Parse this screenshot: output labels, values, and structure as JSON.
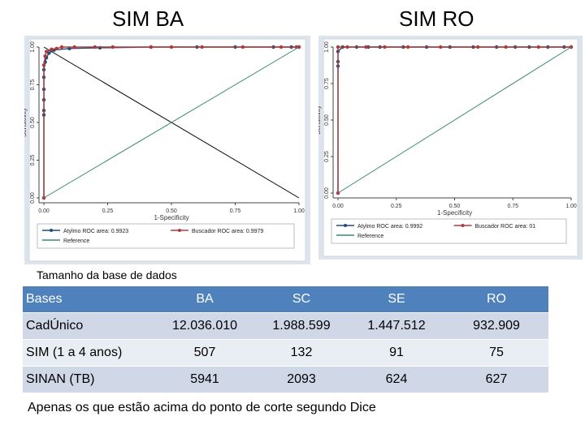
{
  "headings": {
    "left": "SIM BA",
    "right": "SIM RO"
  },
  "chart_data": [
    {
      "type": "line",
      "panel": "SIM BA",
      "xlabel": "1-Specificity",
      "ylabel": "Sensitivity",
      "xlim": [
        0,
        1
      ],
      "ylim": [
        0,
        1
      ],
      "xticks": [
        "0.00",
        "0.25",
        "0.50",
        "0.75",
        "1.00"
      ],
      "yticks": [
        "0.00",
        "0.25",
        "0.50",
        "0.75",
        "1.00"
      ],
      "series": [
        {
          "name": "Atylmo ROC area: 0.9923",
          "color": "#1f4e79",
          "points": [
            [
              0,
              0
            ],
            [
              0,
              0.55
            ],
            [
              0,
              0.58
            ],
            [
              0,
              0.65
            ],
            [
              0,
              0.72
            ],
            [
              0,
              0.8
            ],
            [
              0,
              0.85
            ],
            [
              0.005,
              0.9
            ],
            [
              0.01,
              0.93
            ],
            [
              0.02,
              0.96
            ],
            [
              0.04,
              0.98
            ],
            [
              0.1,
              0.99
            ],
            [
              0.22,
              0.995
            ],
            [
              0.42,
              1
            ],
            [
              0.6,
              1
            ],
            [
              0.75,
              1
            ],
            [
              0.9,
              1
            ],
            [
              0.97,
              1
            ],
            [
              1,
              1
            ]
          ]
        },
        {
          "name": "Buscador ROC area: 0.9979",
          "color": "#b03a3a",
          "points": [
            [
              0,
              0
            ],
            [
              0,
              0.88
            ],
            [
              0.005,
              0.94
            ],
            [
              0.01,
              0.97
            ],
            [
              0.03,
              0.985
            ],
            [
              0.05,
              0.99
            ],
            [
              0.07,
              1
            ],
            [
              0.12,
              1
            ],
            [
              0.2,
              1
            ],
            [
              0.27,
              1
            ],
            [
              0.42,
              1
            ],
            [
              0.5,
              1
            ],
            [
              0.62,
              1
            ],
            [
              0.78,
              1
            ],
            [
              0.93,
              1
            ],
            [
              0.99,
              1
            ],
            [
              1,
              1
            ]
          ]
        },
        {
          "name": "Reference",
          "color": "#3a8a73",
          "points": [
            [
              0,
              0
            ],
            [
              1,
              1
            ]
          ]
        }
      ],
      "extra_line": {
        "color": "#000000",
        "points": [
          [
            0,
            1
          ],
          [
            1,
            0
          ]
        ]
      },
      "legend": "bottom"
    },
    {
      "type": "line",
      "panel": "SIM RO",
      "xlabel": "1-Specificity",
      "ylabel": "Sensitivity",
      "xlim": [
        0,
        1
      ],
      "ylim": [
        0,
        1
      ],
      "xticks": [
        "0.00",
        "0.25",
        "0.50",
        "0.75",
        "1.00"
      ],
      "yticks": [
        "0.00",
        "0.25",
        "0.50",
        "0.75",
        "1.00"
      ],
      "series": [
        {
          "name": "Atylmo ROC area: 0.9992",
          "color": "#1f4e79",
          "points": [
            [
              0,
              0
            ],
            [
              0,
              0.87
            ],
            [
              0,
              0.9
            ],
            [
              0,
              0.97
            ],
            [
              0.02,
              1
            ],
            [
              0.08,
              1
            ],
            [
              0.13,
              1
            ],
            [
              0.18,
              1
            ],
            [
              0.28,
              1
            ],
            [
              0.38,
              1
            ],
            [
              0.48,
              1
            ],
            [
              0.58,
              1
            ],
            [
              0.68,
              1
            ],
            [
              0.76,
              1
            ],
            [
              0.82,
              1
            ],
            [
              0.9,
              1
            ],
            [
              0.97,
              1
            ],
            [
              1,
              1
            ]
          ]
        },
        {
          "name": "Buscador ROC area: 01",
          "color": "#b03a3a",
          "points": [
            [
              0,
              0
            ],
            [
              0,
              1
            ],
            [
              0.04,
              1
            ],
            [
              0.12,
              1
            ],
            [
              0.2,
              1
            ],
            [
              0.3,
              1
            ],
            [
              0.44,
              1
            ],
            [
              0.6,
              1
            ],
            [
              0.72,
              1
            ],
            [
              0.86,
              1
            ],
            [
              1,
              1
            ]
          ]
        },
        {
          "name": "Reference",
          "color": "#3a8a73",
          "points": [
            [
              0,
              0
            ],
            [
              1,
              1
            ]
          ]
        }
      ],
      "legend": "bottom"
    }
  ],
  "subtitle": "Tamanho da base de dados",
  "table": {
    "headers": [
      "Bases",
      "BA",
      "SC",
      "SE",
      "RO"
    ],
    "rows": [
      [
        "CadÚnico",
        "12.036.010",
        "1.988.599",
        "1.447.512",
        "932.909"
      ],
      [
        "SIM (1 a 4 anos)",
        "507",
        "132",
        "91",
        "75"
      ],
      [
        "SINAN (TB)",
        "5941",
        "2093",
        "624",
        "627"
      ]
    ]
  },
  "footnote": "Apenas os que estão acima do ponto de corte segundo Dice"
}
